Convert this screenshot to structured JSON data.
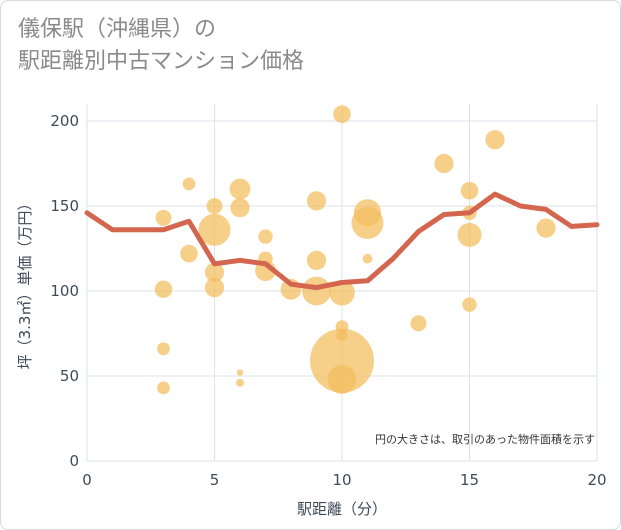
{
  "title": {
    "line1": "儀保駅（沖縄県）の",
    "line2": "駅距離別中古マンション価格"
  },
  "chart_data": {
    "type": "scatter",
    "xlabel": "駅距離（分）",
    "ylabel": "坪（3.3㎡）単価（万円）",
    "xlim": [
      0,
      20
    ],
    "ylim": [
      0,
      210
    ],
    "x_ticks": [
      "0",
      "5",
      "10",
      "15",
      "20"
    ],
    "y_ticks": [
      "0",
      "50",
      "100",
      "150",
      "200"
    ],
    "x_tick_values": [
      0,
      5,
      10,
      15,
      20
    ],
    "y_tick_values": [
      0,
      50,
      100,
      150,
      200
    ],
    "grid": true,
    "note": "円の大きさは、取引のあった物件面積を示す",
    "colors": {
      "bubble": "#f2bd5c",
      "line": "#d4664f",
      "grid": "#dde3ea"
    },
    "bubbles": [
      {
        "x": 3,
        "y": 143,
        "size": 1.0
      },
      {
        "x": 3,
        "y": 101,
        "size": 1.1
      },
      {
        "x": 3,
        "y": 66,
        "size": 0.8
      },
      {
        "x": 3,
        "y": 43,
        "size": 0.8
      },
      {
        "x": 4,
        "y": 163,
        "size": 0.8
      },
      {
        "x": 4,
        "y": 122,
        "size": 1.1
      },
      {
        "x": 5,
        "y": 150,
        "size": 1.0
      },
      {
        "x": 5,
        "y": 136,
        "size": 2.0
      },
      {
        "x": 5,
        "y": 111,
        "size": 1.2
      },
      {
        "x": 5,
        "y": 102,
        "size": 1.2
      },
      {
        "x": 6,
        "y": 160,
        "size": 1.3
      },
      {
        "x": 6,
        "y": 149,
        "size": 1.2
      },
      {
        "x": 6,
        "y": 52,
        "size": 0.4
      },
      {
        "x": 6,
        "y": 46,
        "size": 0.5
      },
      {
        "x": 7,
        "y": 132,
        "size": 0.9
      },
      {
        "x": 7,
        "y": 119,
        "size": 0.9
      },
      {
        "x": 7,
        "y": 112,
        "size": 1.3
      },
      {
        "x": 8,
        "y": 101,
        "size": 1.3
      },
      {
        "x": 9,
        "y": 153,
        "size": 1.2
      },
      {
        "x": 9,
        "y": 118,
        "size": 1.2
      },
      {
        "x": 9,
        "y": 100,
        "size": 1.8
      },
      {
        "x": 10,
        "y": 204,
        "size": 1.1
      },
      {
        "x": 10,
        "y": 99,
        "size": 1.6
      },
      {
        "x": 10,
        "y": 79,
        "size": 0.8
      },
      {
        "x": 10,
        "y": 74,
        "size": 0.7
      },
      {
        "x": 10,
        "y": 59,
        "size": 4.0
      },
      {
        "x": 10,
        "y": 48,
        "size": 1.8
      },
      {
        "x": 11,
        "y": 146,
        "size": 1.7
      },
      {
        "x": 11,
        "y": 140,
        "size": 2.0
      },
      {
        "x": 11,
        "y": 119,
        "size": 0.6
      },
      {
        "x": 13,
        "y": 81,
        "size": 1.0
      },
      {
        "x": 14,
        "y": 175,
        "size": 1.2
      },
      {
        "x": 15,
        "y": 159,
        "size": 1.1
      },
      {
        "x": 15,
        "y": 146,
        "size": 0.9
      },
      {
        "x": 15,
        "y": 133,
        "size": 1.5
      },
      {
        "x": 15,
        "y": 92,
        "size": 0.9
      },
      {
        "x": 16,
        "y": 189,
        "size": 1.2
      },
      {
        "x": 18,
        "y": 137,
        "size": 1.2
      }
    ],
    "line": {
      "x": [
        0,
        1,
        2,
        3,
        4,
        5,
        6,
        7,
        8,
        9,
        10,
        11,
        12,
        13,
        14,
        15,
        16,
        17,
        18,
        19,
        20
      ],
      "y": [
        146,
        136,
        136,
        136,
        141,
        116,
        118,
        116,
        104,
        102,
        105,
        106,
        119,
        135,
        145,
        146,
        157,
        150,
        148,
        138,
        139
      ]
    }
  }
}
